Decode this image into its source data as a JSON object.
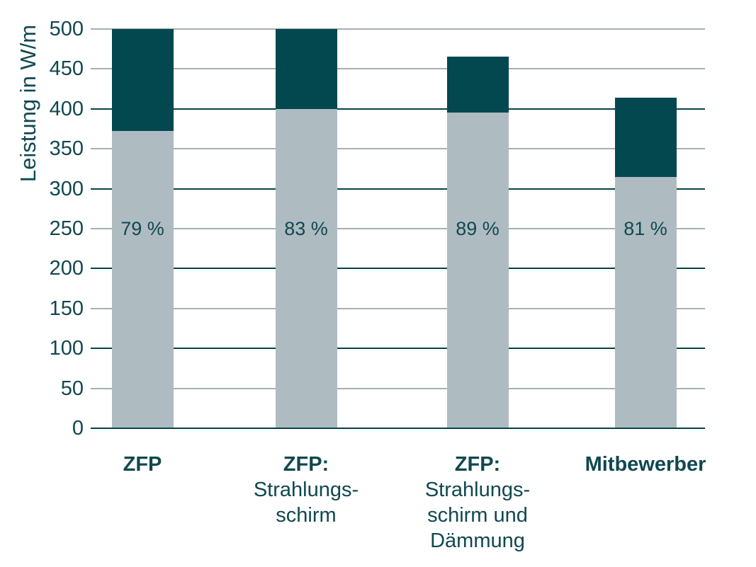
{
  "chart_data": {
    "type": "bar",
    "stacked": true,
    "title": "",
    "ylabel": "Leistung in W/m",
    "xlabel": "",
    "ylim": [
      0,
      500
    ],
    "ytick_interval": 50,
    "ytick_labels": [
      "0",
      "50",
      "100",
      "150",
      "200",
      "250",
      "300",
      "350",
      "400",
      "450",
      "500"
    ],
    "grid": "horizontal",
    "legend": "none",
    "categories": [
      "ZFP",
      "ZFP: Strahlungsschirm",
      "ZFP: Strahlungsschirm und Dämmung",
      "Mitbewerber"
    ],
    "category_label_lines": [
      [
        "ZFP"
      ],
      [
        "ZFP:",
        "Strahlungs-",
        "schirm"
      ],
      [
        "ZFP:",
        "Strahlungs-",
        "schirm und",
        "Dämmung"
      ],
      [
        "Mitbewerber"
      ]
    ],
    "series": [
      {
        "name": "segment-light",
        "color": "#aebcc2",
        "values": [
          372,
          400,
          395,
          315
        ]
      },
      {
        "name": "segment-dark",
        "color": "#03474f",
        "values": [
          128,
          100,
          70,
          99
        ]
      }
    ],
    "totals": [
      500,
      500,
      465,
      414
    ],
    "bar_percent_labels": [
      "79 %",
      "83 %",
      "89 %",
      "81 %"
    ],
    "percent_label_at_value": 250
  },
  "colors": {
    "background": "#ffffff",
    "bar_light": "#aebcc2",
    "bar_dark": "#03474f",
    "grid_major": "#05434a",
    "grid_minor": "#a8aeb1",
    "text": "#10484f"
  }
}
